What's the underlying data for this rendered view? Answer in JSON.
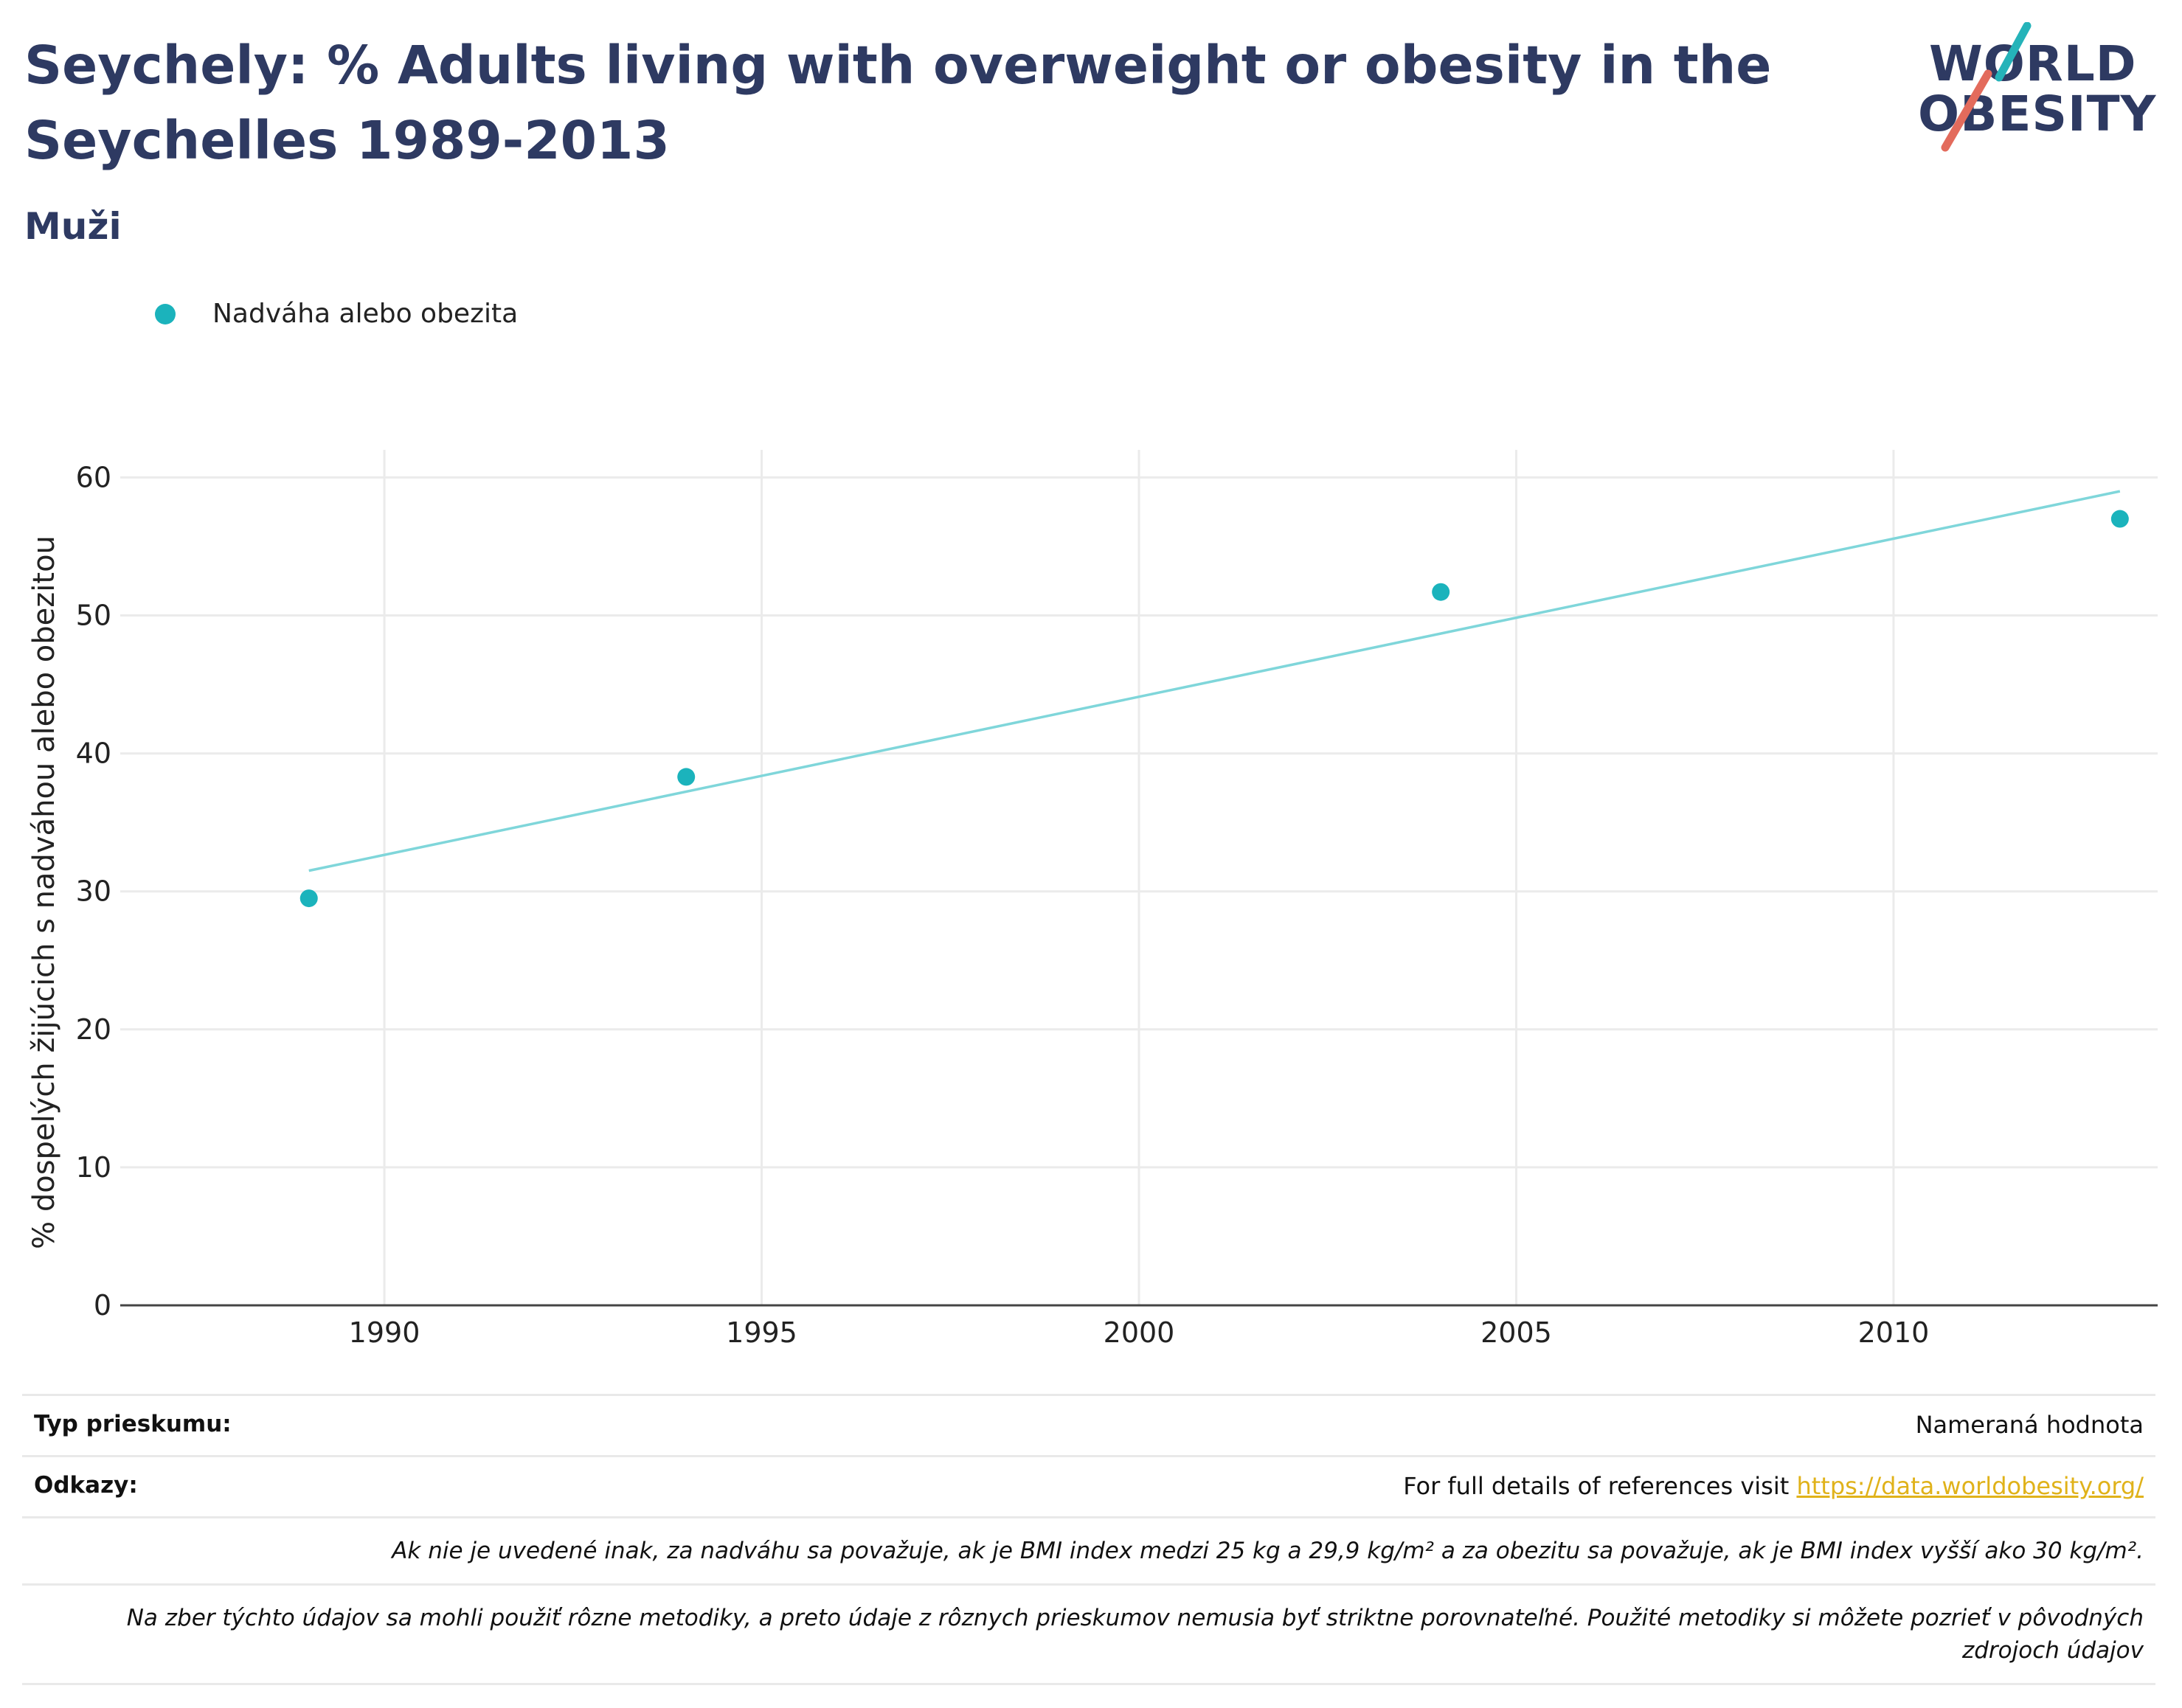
{
  "header": {
    "title": "Seychely: % Adults living with overweight or obesity in the Seychelles 1989-2013",
    "subtitle": "Muži",
    "logo_line1": "WORLD",
    "logo_line2": "OBESITY"
  },
  "colors": {
    "title": "#2e3a62",
    "series": "#1bb3bc",
    "trend": "#7fd6da",
    "link": "#e0b21a",
    "logo_slash_top": "#25b3b9",
    "logo_slash_bottom": "#e36b5c"
  },
  "legend": {
    "label": "Nadváha alebo obezita"
  },
  "chart_data": {
    "type": "scatter",
    "xlabel": "",
    "ylabel": "% dospelých žijúcich s nadváhou alebo obezitou",
    "xlim": [
      1986.5,
      2013.5
    ],
    "ylim": [
      0,
      62
    ],
    "x_ticks": [
      1990,
      1995,
      2000,
      2005,
      2010
    ],
    "y_ticks": [
      0,
      10,
      20,
      30,
      40,
      50,
      60
    ],
    "grid": true,
    "legend_position": "top-left",
    "series": [
      {
        "name": "Nadváha alebo obezita",
        "x": [
          1989,
          1994,
          2004,
          2013
        ],
        "y": [
          29.5,
          38.3,
          51.7,
          57.0
        ]
      }
    ],
    "trendline": {
      "x": [
        1989,
        2013
      ],
      "y": [
        31.5,
        59.0
      ]
    }
  },
  "info": {
    "survey_type_label": "Typ prieskumu:",
    "survey_type_value": "Nameraná hodnota",
    "references_label": "Odkazy:",
    "references_text": "For full details of references visit ",
    "references_link": "https://data.worldobesity.org/",
    "note_bmi": "Ak nie je uvedené inak, za nadváhu sa považuje, ak je BMI index medzi 25 kg a 29,9 kg/m² a za obezitu sa považuje, ak je BMI index vyšší ako 30 kg/m².",
    "note_methods": "Na zber týchto údajov sa mohli použiť rôzne metodiky, a preto údaje z rôznych prieskumov nemusia byť striktne porovnateľné. Použité metodiky si môžete pozrieť v pôvodných zdrojoch údajov"
  }
}
